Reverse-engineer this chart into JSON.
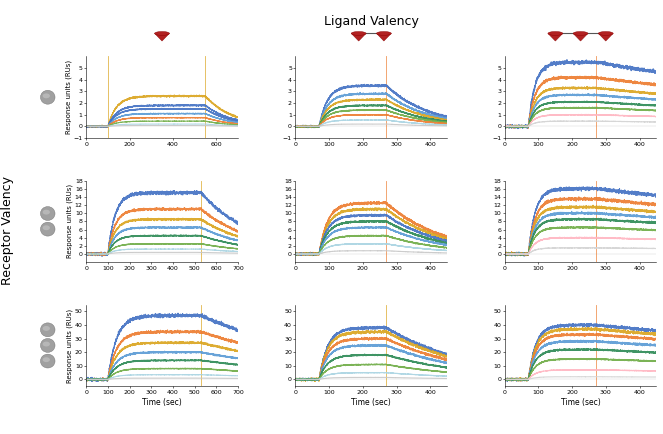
{
  "title": "Ligand Valency",
  "receptor_valency_label": "Receptor Valency",
  "figsize": [
    6.63,
    4.34
  ],
  "dpi": 100,
  "plots": [
    {
      "row": 0,
      "col": 0,
      "xlabel": "",
      "ylabel": "Response units (RUs)",
      "xlim": [
        0,
        700
      ],
      "ylim": [
        -1,
        6
      ],
      "xticks": [
        0,
        200,
        400,
        600
      ],
      "yticks": [
        -1,
        0,
        1,
        2,
        3,
        4,
        5
      ],
      "baseline_end": 100,
      "assoc_end": 550,
      "dissoc_end": 700,
      "max_responses": [
        2.6,
        1.8,
        1.5,
        1.1,
        0.75,
        0.45,
        0.2,
        0.08
      ],
      "colors": [
        "#DAA520",
        "#4472C4",
        "#4472C4",
        "#5B9BD5",
        "#ED7D31",
        "#70AD47",
        "#A9D4E2",
        "#C8C8C8"
      ],
      "kdoff": 0.008,
      "kon_scale": 0.025,
      "vline_color": "#DAA520",
      "vline_x": [
        100,
        550
      ],
      "plateau": true,
      "slow_dissoc": false
    },
    {
      "row": 0,
      "col": 1,
      "xlabel": "",
      "ylabel": "",
      "xlim": [
        0,
        450
      ],
      "ylim": [
        -1,
        6
      ],
      "xticks": [
        0,
        100,
        200,
        300,
        400
      ],
      "yticks": [
        -1,
        0,
        1,
        2,
        3,
        4,
        5
      ],
      "baseline_end": 70,
      "assoc_end": 270,
      "dissoc_end": 450,
      "max_responses": [
        3.5,
        2.8,
        2.3,
        1.8,
        1.4,
        1.0,
        0.55,
        0.2
      ],
      "colors": [
        "#4472C4",
        "#5B9BD5",
        "#DAA520",
        "#2E8B57",
        "#70AD47",
        "#ED7D31",
        "#A9D4E2",
        "#C8C8C8"
      ],
      "kdoff": 0.008,
      "kon_scale": 0.04,
      "vline_color": "#ED7D31",
      "vline_x": [
        270
      ],
      "plateau": false,
      "slow_dissoc": false
    },
    {
      "row": 0,
      "col": 2,
      "xlabel": "",
      "ylabel": "",
      "xlim": [
        0,
        450
      ],
      "ylim": [
        -1,
        6
      ],
      "xticks": [
        0,
        100,
        200,
        300,
        400
      ],
      "yticks": [
        -1,
        0,
        1,
        2,
        3,
        4,
        5
      ],
      "baseline_end": 70,
      "assoc_end": 270,
      "dissoc_end": 450,
      "max_responses": [
        5.5,
        4.2,
        3.3,
        2.7,
        2.1,
        1.6,
        1.0,
        0.45
      ],
      "colors": [
        "#4472C4",
        "#ED7D31",
        "#DAA520",
        "#5B9BD5",
        "#2E8B57",
        "#70AD47",
        "#FFB6C1",
        "#D3D3D3"
      ],
      "kdoff": 0.003,
      "kon_scale": 0.05,
      "vline_color": "#ED7D31",
      "vline_x": [
        270
      ],
      "plateau": false,
      "slow_dissoc": true
    },
    {
      "row": 1,
      "col": 0,
      "xlabel": "",
      "ylabel": "Response units (RUs)",
      "xlim": [
        0,
        700
      ],
      "ylim": [
        -2,
        18
      ],
      "xticks": [
        0,
        100,
        200,
        300,
        400,
        500,
        600,
        700
      ],
      "yticks": [
        0,
        2,
        4,
        6,
        8,
        10,
        12,
        14,
        16,
        18
      ],
      "baseline_end": 100,
      "assoc_end": 530,
      "dissoc_end": 700,
      "max_responses": [
        15.0,
        11.0,
        8.5,
        6.5,
        4.5,
        2.5,
        1.2,
        0.4
      ],
      "colors": [
        "#4472C4",
        "#ED7D31",
        "#DAA520",
        "#5B9BD5",
        "#2E8B57",
        "#70AD47",
        "#A9D4E2",
        "#C8C8C8"
      ],
      "kdoff": 0.004,
      "kon_scale": 0.03,
      "vline_color": "#DAA520",
      "vline_x": [
        530
      ],
      "plateau": true,
      "slow_dissoc": false
    },
    {
      "row": 1,
      "col": 1,
      "xlabel": "",
      "ylabel": "",
      "xlim": [
        0,
        450
      ],
      "ylim": [
        -2,
        18
      ],
      "xticks": [
        0,
        100,
        200,
        300,
        400
      ],
      "yticks": [
        0,
        2,
        4,
        6,
        8,
        10,
        12,
        14,
        16,
        18
      ],
      "baseline_end": 70,
      "assoc_end": 270,
      "dissoc_end": 450,
      "max_responses": [
        12.5,
        11.0,
        9.5,
        8.0,
        6.5,
        4.5,
        2.5,
        0.8
      ],
      "colors": [
        "#ED7D31",
        "#DAA520",
        "#4472C4",
        "#2E8B57",
        "#5B9BD5",
        "#70AD47",
        "#A9D4E2",
        "#C8C8C8"
      ],
      "kdoff": 0.006,
      "kon_scale": 0.04,
      "vline_color": "#ED7D31",
      "vline_x": [
        270
      ],
      "plateau": false,
      "slow_dissoc": false
    },
    {
      "row": 1,
      "col": 2,
      "xlabel": "",
      "ylabel": "",
      "xlim": [
        0,
        450
      ],
      "ylim": [
        -2,
        18
      ],
      "xticks": [
        0,
        100,
        200,
        300,
        400
      ],
      "yticks": [
        0,
        2,
        4,
        6,
        8,
        10,
        12,
        14,
        16,
        18
      ],
      "baseline_end": 70,
      "assoc_end": 270,
      "dissoc_end": 450,
      "max_responses": [
        16.0,
        13.5,
        11.5,
        10.0,
        8.5,
        6.5,
        4.0,
        1.5
      ],
      "colors": [
        "#4472C4",
        "#ED7D31",
        "#DAA520",
        "#5B9BD5",
        "#2E8B57",
        "#70AD47",
        "#FFB6C1",
        "#D3D3D3"
      ],
      "kdoff": 0.002,
      "kon_scale": 0.05,
      "vline_color": "#ED7D31",
      "vline_x": [
        270
      ],
      "plateau": false,
      "slow_dissoc": true
    },
    {
      "row": 2,
      "col": 0,
      "xlabel": "Time (sec)",
      "ylabel": "Response units (RUs)",
      "xlim": [
        0,
        700
      ],
      "ylim": [
        -5,
        55
      ],
      "xticks": [
        0,
        100,
        200,
        300,
        400,
        500,
        600,
        700
      ],
      "yticks": [
        0,
        10,
        20,
        30,
        40,
        50
      ],
      "baseline_end": 100,
      "assoc_end": 530,
      "dissoc_end": 700,
      "max_responses": [
        47.0,
        35.0,
        27.0,
        20.0,
        14.0,
        8.0,
        3.5,
        1.0
      ],
      "colors": [
        "#4472C4",
        "#ED7D31",
        "#DAA520",
        "#5B9BD5",
        "#2E8B57",
        "#70AD47",
        "#A9D4E2",
        "#C8C8C8"
      ],
      "kdoff": 0.0015,
      "kon_scale": 0.025,
      "vline_color": "#DAA520",
      "vline_x": [
        530
      ],
      "plateau": true,
      "slow_dissoc": false
    },
    {
      "row": 2,
      "col": 1,
      "xlabel": "Time (sec)",
      "ylabel": "",
      "xlim": [
        0,
        450
      ],
      "ylim": [
        -5,
        55
      ],
      "xticks": [
        0,
        100,
        200,
        300,
        400
      ],
      "yticks": [
        0,
        10,
        20,
        30,
        40,
        50
      ],
      "baseline_end": 70,
      "assoc_end": 270,
      "dissoc_end": 450,
      "max_responses": [
        38.0,
        35.0,
        30.0,
        25.0,
        18.0,
        11.0,
        5.0,
        1.5
      ],
      "colors": [
        "#4472C4",
        "#DAA520",
        "#ED7D31",
        "#5B9BD5",
        "#2E8B57",
        "#70AD47",
        "#A9D4E2",
        "#C8C8C8"
      ],
      "kdoff": 0.004,
      "kon_scale": 0.04,
      "vline_color": "#DAA520",
      "vline_x": [
        270
      ],
      "plateau": false,
      "slow_dissoc": false
    },
    {
      "row": 2,
      "col": 2,
      "xlabel": "Time (sec)",
      "ylabel": "",
      "xlim": [
        0,
        450
      ],
      "ylim": [
        -5,
        55
      ],
      "xticks": [
        0,
        100,
        200,
        300,
        400
      ],
      "yticks": [
        0,
        10,
        20,
        30,
        40,
        50
      ],
      "baseline_end": 70,
      "assoc_end": 270,
      "dissoc_end": 450,
      "max_responses": [
        40.0,
        37.0,
        33.0,
        28.0,
        22.0,
        15.0,
        7.0,
        2.0
      ],
      "colors": [
        "#4472C4",
        "#DAA520",
        "#ED7D31",
        "#5B9BD5",
        "#2E8B57",
        "#70AD47",
        "#FFB6C1",
        "#D3D3D3"
      ],
      "kdoff": 0.002,
      "kon_scale": 0.045,
      "vline_color": "#ED7D31",
      "vline_x": [
        270
      ],
      "plateau": false,
      "slow_dissoc": true
    }
  ]
}
